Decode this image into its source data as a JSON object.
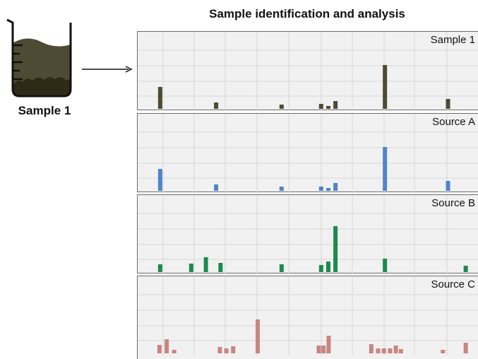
{
  "title": "Sample identification and analysis",
  "beaker": {
    "label": "Sample 1",
    "liquid_color": "#4f4a33"
  },
  "panels": [
    {
      "id": "sample-1",
      "label": "Sample 1",
      "color": "#4f4a33",
      "bars": [
        {
          "x": 0.066,
          "h": 0.31
        },
        {
          "x": 0.23,
          "h": 0.09
        },
        {
          "x": 0.422,
          "h": 0.06
        },
        {
          "x": 0.538,
          "h": 0.07
        },
        {
          "x": 0.559,
          "h": 0.04
        },
        {
          "x": 0.58,
          "h": 0.11
        },
        {
          "x": 0.725,
          "h": 0.62
        },
        {
          "x": 0.91,
          "h": 0.14
        }
      ]
    },
    {
      "id": "source-a",
      "label": "Source A",
      "color": "#4f85c9",
      "bars": [
        {
          "x": 0.066,
          "h": 0.31
        },
        {
          "x": 0.23,
          "h": 0.09
        },
        {
          "x": 0.422,
          "h": 0.06
        },
        {
          "x": 0.538,
          "h": 0.06
        },
        {
          "x": 0.559,
          "h": 0.04
        },
        {
          "x": 0.58,
          "h": 0.11
        },
        {
          "x": 0.725,
          "h": 0.62
        },
        {
          "x": 0.91,
          "h": 0.14
        }
      ]
    },
    {
      "id": "source-b",
      "label": "Source B",
      "color": "#1c8a4d",
      "bars": [
        {
          "x": 0.066,
          "h": 0.11
        },
        {
          "x": 0.157,
          "h": 0.12
        },
        {
          "x": 0.2,
          "h": 0.21
        },
        {
          "x": 0.243,
          "h": 0.13
        },
        {
          "x": 0.422,
          "h": 0.11
        },
        {
          "x": 0.538,
          "h": 0.1
        },
        {
          "x": 0.559,
          "h": 0.15
        },
        {
          "x": 0.58,
          "h": 0.65
        },
        {
          "x": 0.725,
          "h": 0.19
        },
        {
          "x": 0.962,
          "h": 0.09
        }
      ]
    },
    {
      "id": "source-c",
      "label": "Source C",
      "color": "#c98580",
      "bars": [
        {
          "x": 0.064,
          "h": 0.12
        },
        {
          "x": 0.085,
          "h": 0.2
        },
        {
          "x": 0.107,
          "h": 0.05
        },
        {
          "x": 0.241,
          "h": 0.09
        },
        {
          "x": 0.26,
          "h": 0.07
        },
        {
          "x": 0.28,
          "h": 0.1
        },
        {
          "x": 0.352,
          "h": 0.48
        },
        {
          "x": 0.531,
          "h": 0.11
        },
        {
          "x": 0.545,
          "h": 0.11
        },
        {
          "x": 0.56,
          "h": 0.25
        },
        {
          "x": 0.685,
          "h": 0.13
        },
        {
          "x": 0.705,
          "h": 0.07
        },
        {
          "x": 0.722,
          "h": 0.07
        },
        {
          "x": 0.74,
          "h": 0.07
        },
        {
          "x": 0.757,
          "h": 0.11
        },
        {
          "x": 0.772,
          "h": 0.06
        },
        {
          "x": 0.895,
          "h": 0.05
        },
        {
          "x": 0.962,
          "h": 0.15
        }
      ]
    }
  ]
}
